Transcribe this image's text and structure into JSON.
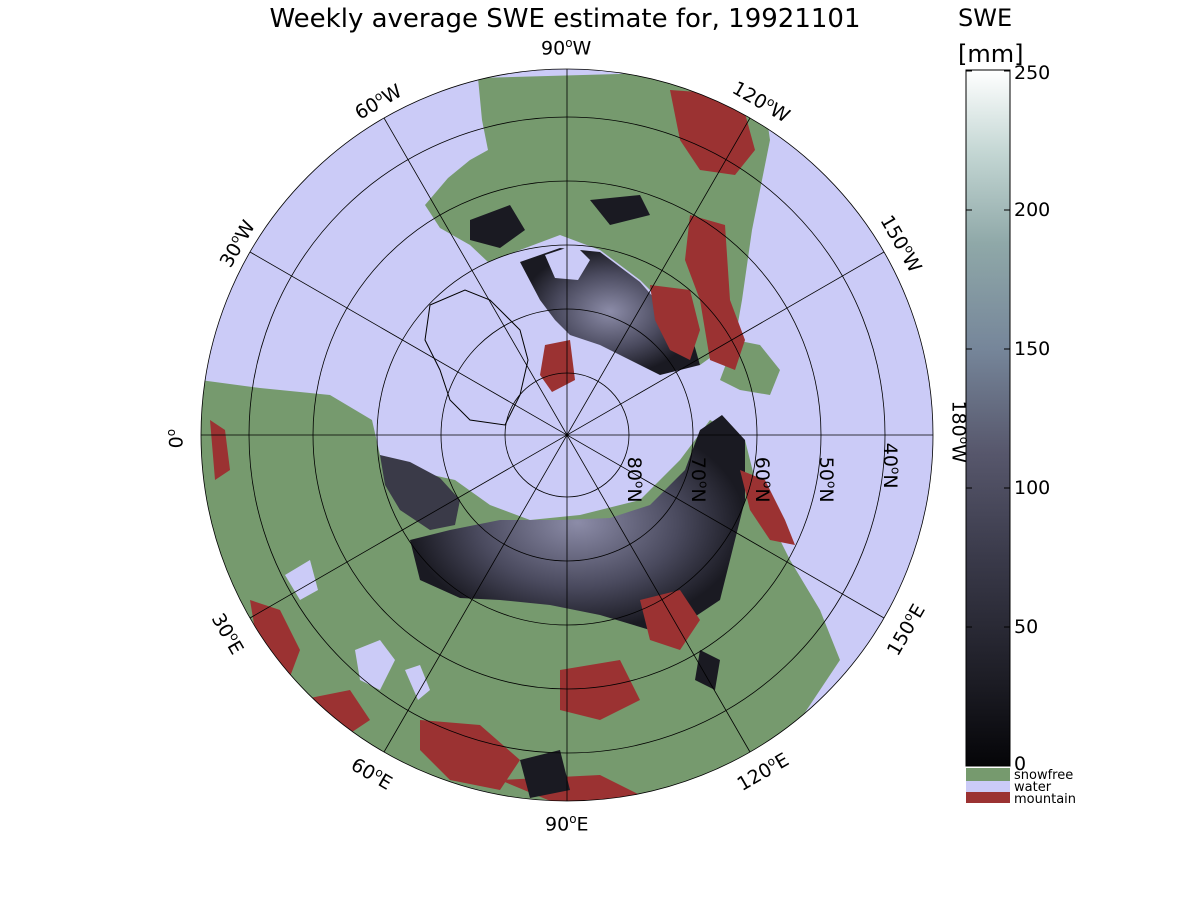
{
  "title": "Weekly average SWE estimate for, 19921101",
  "colorbar": {
    "label_line1": "SWE",
    "label_line2": "[mm]",
    "ticks": [
      "0",
      "50",
      "100",
      "150",
      "200",
      "250"
    ],
    "range": [
      0,
      250
    ],
    "legend": [
      {
        "label": "snowfree",
        "color": "#769a6e"
      },
      {
        "label": "water",
        "color": "#cbcbf7"
      },
      {
        "label": "mountain",
        "color": "#9b3232"
      }
    ]
  },
  "map": {
    "projection": "north-polar-stereographic",
    "colors": {
      "land_snowfree": "#769a6e",
      "water": "#cbcbf7",
      "mountain": "#9b3232",
      "snow_low": "#111118",
      "snow_mid": "#55556a",
      "snow_high": "#ffffff",
      "coast": "#000000"
    },
    "longitude_labels": [
      {
        "deg": "90",
        "hem": "W"
      },
      {
        "deg": "120",
        "hem": "W"
      },
      {
        "deg": "150",
        "hem": "W"
      },
      {
        "deg": "180",
        "hem": "W"
      },
      {
        "deg": "150",
        "hem": "E"
      },
      {
        "deg": "120",
        "hem": "E"
      },
      {
        "deg": "90",
        "hem": "E"
      },
      {
        "deg": "60",
        "hem": "E"
      },
      {
        "deg": "30",
        "hem": "E"
      },
      {
        "deg": "0",
        "hem": ""
      },
      {
        "deg": "30",
        "hem": "W"
      },
      {
        "deg": "60",
        "hem": "W"
      }
    ],
    "latitude_labels": [
      {
        "deg": "80",
        "hem": "N"
      },
      {
        "deg": "70",
        "hem": "N"
      },
      {
        "deg": "60",
        "hem": "N"
      },
      {
        "deg": "50",
        "hem": "N"
      },
      {
        "deg": "40",
        "hem": "N"
      }
    ]
  }
}
